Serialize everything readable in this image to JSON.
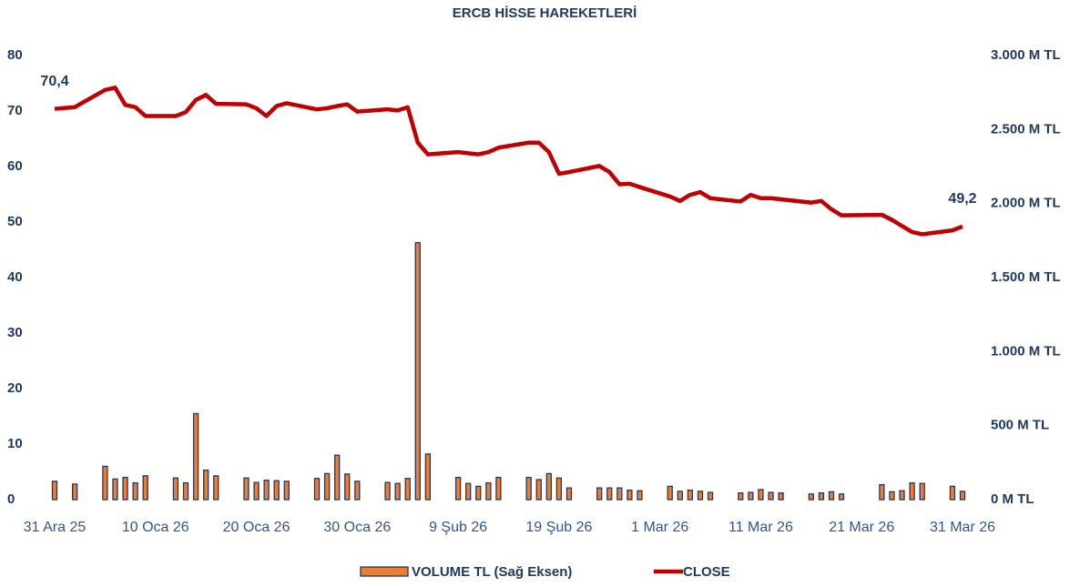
{
  "chart_data": {
    "type": "combo",
    "title": "ERCB HİSSE HAREKETLERİ",
    "x": [
      "2025-12-31",
      "2026-01-02",
      "2026-01-05",
      "2026-01-06",
      "2026-01-07",
      "2026-01-08",
      "2026-01-09",
      "2026-01-12",
      "2026-01-13",
      "2026-01-14",
      "2026-01-15",
      "2026-01-16",
      "2026-01-19",
      "2026-01-20",
      "2026-01-21",
      "2026-01-22",
      "2026-01-23",
      "2026-01-26",
      "2026-01-27",
      "2026-01-28",
      "2026-01-29",
      "2026-01-30",
      "2026-02-02",
      "2026-02-03",
      "2026-02-04",
      "2026-02-05",
      "2026-02-06",
      "2026-02-09",
      "2026-02-10",
      "2026-02-11",
      "2026-02-12",
      "2026-02-13",
      "2026-02-16",
      "2026-02-17",
      "2026-02-18",
      "2026-02-19",
      "2026-02-20",
      "2026-02-23",
      "2026-02-24",
      "2026-02-25",
      "2026-02-26",
      "2026-02-27",
      "2026-03-02",
      "2026-03-03",
      "2026-03-04",
      "2026-03-05",
      "2026-03-06",
      "2026-03-09",
      "2026-03-10",
      "2026-03-11",
      "2026-03-12",
      "2026-03-13",
      "2026-03-16",
      "2026-03-17",
      "2026-03-18",
      "2026-03-19",
      "2026-03-23",
      "2026-03-24",
      "2026-03-25",
      "2026-03-26",
      "2026-03-27",
      "2026-03-30",
      "2026-03-31"
    ],
    "xlim": [
      "2025-12-31",
      "2026-03-31"
    ],
    "xticks": [
      {
        "value": "2025-12-31",
        "label": "31 Ara 25"
      },
      {
        "value": "2026-01-10",
        "label": "10 Oca 26"
      },
      {
        "value": "2026-01-20",
        "label": "20 Oca 26"
      },
      {
        "value": "2026-01-30",
        "label": "30 Oca 26"
      },
      {
        "value": "2026-02-09",
        "label": "9 Şub 26"
      },
      {
        "value": "2026-02-19",
        "label": "19 Şub 26"
      },
      {
        "value": "2026-03-01",
        "label": "1 Mar 26"
      },
      {
        "value": "2026-03-11",
        "label": "11 Mar 26"
      },
      {
        "value": "2026-03-21",
        "label": "21 Mar 26"
      },
      {
        "value": "2026-03-31",
        "label": "31 Mar 26"
      }
    ],
    "ylim": [
      0,
      80
    ],
    "yticks": [
      0,
      10,
      20,
      30,
      40,
      50,
      60,
      70,
      80
    ],
    "y2lim": [
      0,
      3000
    ],
    "y2ticks": [
      {
        "value": 0,
        "label": "0 M TL"
      },
      {
        "value": 500,
        "label": "500 M TL"
      },
      {
        "value": 1000,
        "label": "1.000 M TL"
      },
      {
        "value": 1500,
        "label": "1.500 M TL"
      },
      {
        "value": 2000,
        "label": "2.000 M TL"
      },
      {
        "value": 2500,
        "label": "2.500 M TL"
      },
      {
        "value": 3000,
        "label": "3.000 M TL"
      }
    ],
    "series": [
      {
        "name": "VOLUME TL (Sağ Eksen)",
        "type": "bar",
        "axis": "y2",
        "color": "#ed7d31",
        "edge": "#1f3864",
        "values": [
          124,
          105,
          225,
          139,
          150,
          113,
          161,
          146,
          113,
          581,
          199,
          161,
          146,
          116,
          131,
          128,
          124,
          143,
          176,
          300,
          173,
          124,
          116,
          109,
          143,
          1736,
          308,
          150,
          109,
          90,
          113,
          150,
          150,
          135,
          176,
          146,
          79,
          79,
          79,
          79,
          64,
          60,
          90,
          56,
          64,
          56,
          49,
          45,
          49,
          68,
          49,
          45,
          38,
          45,
          53,
          38,
          101,
          53,
          60,
          113,
          109,
          90,
          56
        ]
      },
      {
        "name": "CLOSE",
        "type": "line",
        "color": "#c00000",
        "values": [
          70.4,
          70.7,
          73.8,
          74.2,
          71.1,
          70.7,
          69.1,
          69.1,
          69.8,
          72.0,
          72.9,
          71.3,
          71.2,
          70.5,
          69.1,
          70.9,
          71.4,
          70.3,
          70.5,
          70.9,
          71.2,
          69.9,
          70.3,
          70.1,
          70.7,
          64.3,
          62.2,
          62.6,
          62.4,
          62.2,
          62.6,
          63.4,
          64.3,
          64.3,
          62.6,
          58.7,
          59.0,
          60.1,
          59.0,
          56.8,
          56.9,
          56.3,
          54.6,
          53.8,
          54.9,
          55.4,
          54.3,
          53.7,
          54.9,
          54.3,
          54.3,
          54.1,
          53.5,
          53.8,
          52.3,
          51.2,
          51.3,
          50.4,
          49.3,
          48.2,
          47.8,
          48.5,
          49.2
        ],
        "value_labels": [
          "70,4",
          null,
          null,
          null,
          null,
          null,
          null,
          null,
          null,
          null,
          null,
          null,
          null,
          null,
          null,
          null,
          null,
          null,
          null,
          null,
          null,
          null,
          null,
          null,
          null,
          null,
          null,
          null,
          null,
          null,
          null,
          null,
          null,
          null,
          null,
          null,
          null,
          null,
          null,
          null,
          null,
          null,
          null,
          null,
          null,
          null,
          null,
          null,
          null,
          null,
          null,
          null,
          null,
          null,
          null,
          null,
          null,
          null,
          null,
          null,
          null,
          null,
          "49,2"
        ]
      }
    ]
  }
}
